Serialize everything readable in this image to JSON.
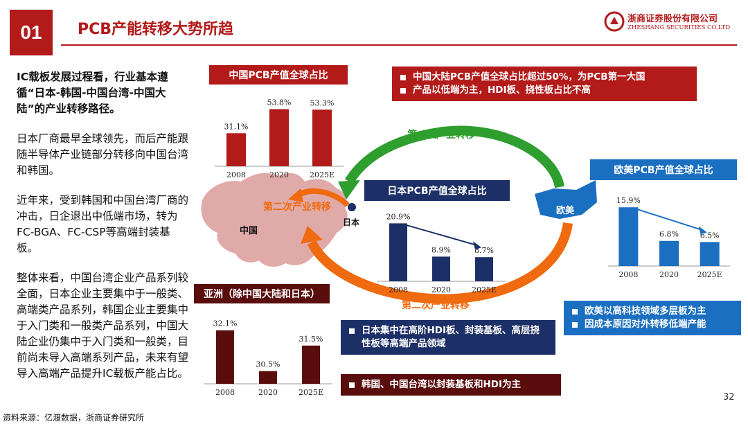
{
  "header": {
    "section_number": "01",
    "title": "PCB产能转移大势所趋",
    "logo_cn": "浙商证券股份有限公司",
    "logo_en": "ZHESHANG SECURITIES CO.LTD"
  },
  "left_text": {
    "p1": "IC载板发展过程看，行业基本遵循“日本-韩国-中国台湾-中国大陆”的产业转移路径。",
    "p2": "日本厂商最早全球领先，而后产能跟随半导体产业链部分转移向中国台湾和韩国。",
    "p3": "近年来，受到韩国和中国台湾厂商的冲击，日企退出中低端市场，转为FC-BGA、FC-CSP等高端封装基板。",
    "p4": "整体来看，中国台湾企业产品系列较全面，日本企业主要集中于一般类、高端类产品系列，韩国企业主要集中于入门类和一般类产品系列，中国大陆企业仍集中于入门类和一般类，目前尚未导入高端系列产品，未来有望导入高端产品提升IC载板产能占比。"
  },
  "footer": {
    "source": "资料来源：亿渡数据，浙商证券研究所",
    "page_number": "32"
  },
  "map": {
    "china_label": "中国",
    "japan_label": "日本",
    "europe_label": "欧美"
  },
  "flows": {
    "first_transfer": "第一次产业转移",
    "second_transfer_top": "第二次产业转移",
    "second_transfer_bottom": "第二次产业转移"
  },
  "callouts": {
    "china": [
      "中国大陆PCB产值全球占比超过50%，为PCB第一大国",
      "产品以低端为主，HDI板、挠性板占比不高"
    ],
    "japan": [
      "日本集中在高阶HDI板、封装基板、高层挠性板等高端产品领域"
    ],
    "europe": [
      "欧美以高科技领域多层板为主",
      "因成本原因对外转移低端产能"
    ],
    "asia": [
      "韩国、中国台湾以封装基板和HDI为主"
    ]
  },
  "colors": {
    "china": "#b31a1a",
    "japan": "#1c2f66",
    "europe": "#1b6fc1",
    "asia": "#5a0d0d",
    "first_flow": "#2e9e2e",
    "second_flow": "#f06a0f"
  },
  "chart_data": [
    {
      "type": "bar",
      "title": "中国PCB产值全球占比",
      "categories": [
        "2008",
        "2020",
        "2025E"
      ],
      "values": [
        31.1,
        53.8,
        53.3
      ],
      "labels": [
        "31.1%",
        "53.8%",
        "53.3%"
      ],
      "ylim": [
        0,
        60
      ]
    },
    {
      "type": "bar",
      "title": "日本PCB产值全球占比",
      "categories": [
        "2008",
        "2020",
        "2025E"
      ],
      "values": [
        20.9,
        8.9,
        8.7
      ],
      "labels": [
        "20.9%",
        "8.9%",
        "8.7%"
      ],
      "ylim": [
        0,
        23
      ]
    },
    {
      "type": "bar",
      "title": "欧美PCB产值全球占比",
      "categories": [
        "2008",
        "2020",
        "2025E"
      ],
      "values": [
        15.9,
        6.8,
        6.5
      ],
      "labels": [
        "15.9%",
        "6.8%",
        "6.5%"
      ],
      "ylim": [
        0,
        18
      ]
    },
    {
      "type": "bar",
      "title": "亚洲（除中国大陆和日本）",
      "categories": [
        "2008",
        "2020",
        "2025E"
      ],
      "values": [
        32.1,
        30.5,
        31.5
      ],
      "labels": [
        "32.1%",
        "30.5%",
        "31.5%"
      ],
      "ylim": [
        30,
        32.5
      ]
    }
  ]
}
